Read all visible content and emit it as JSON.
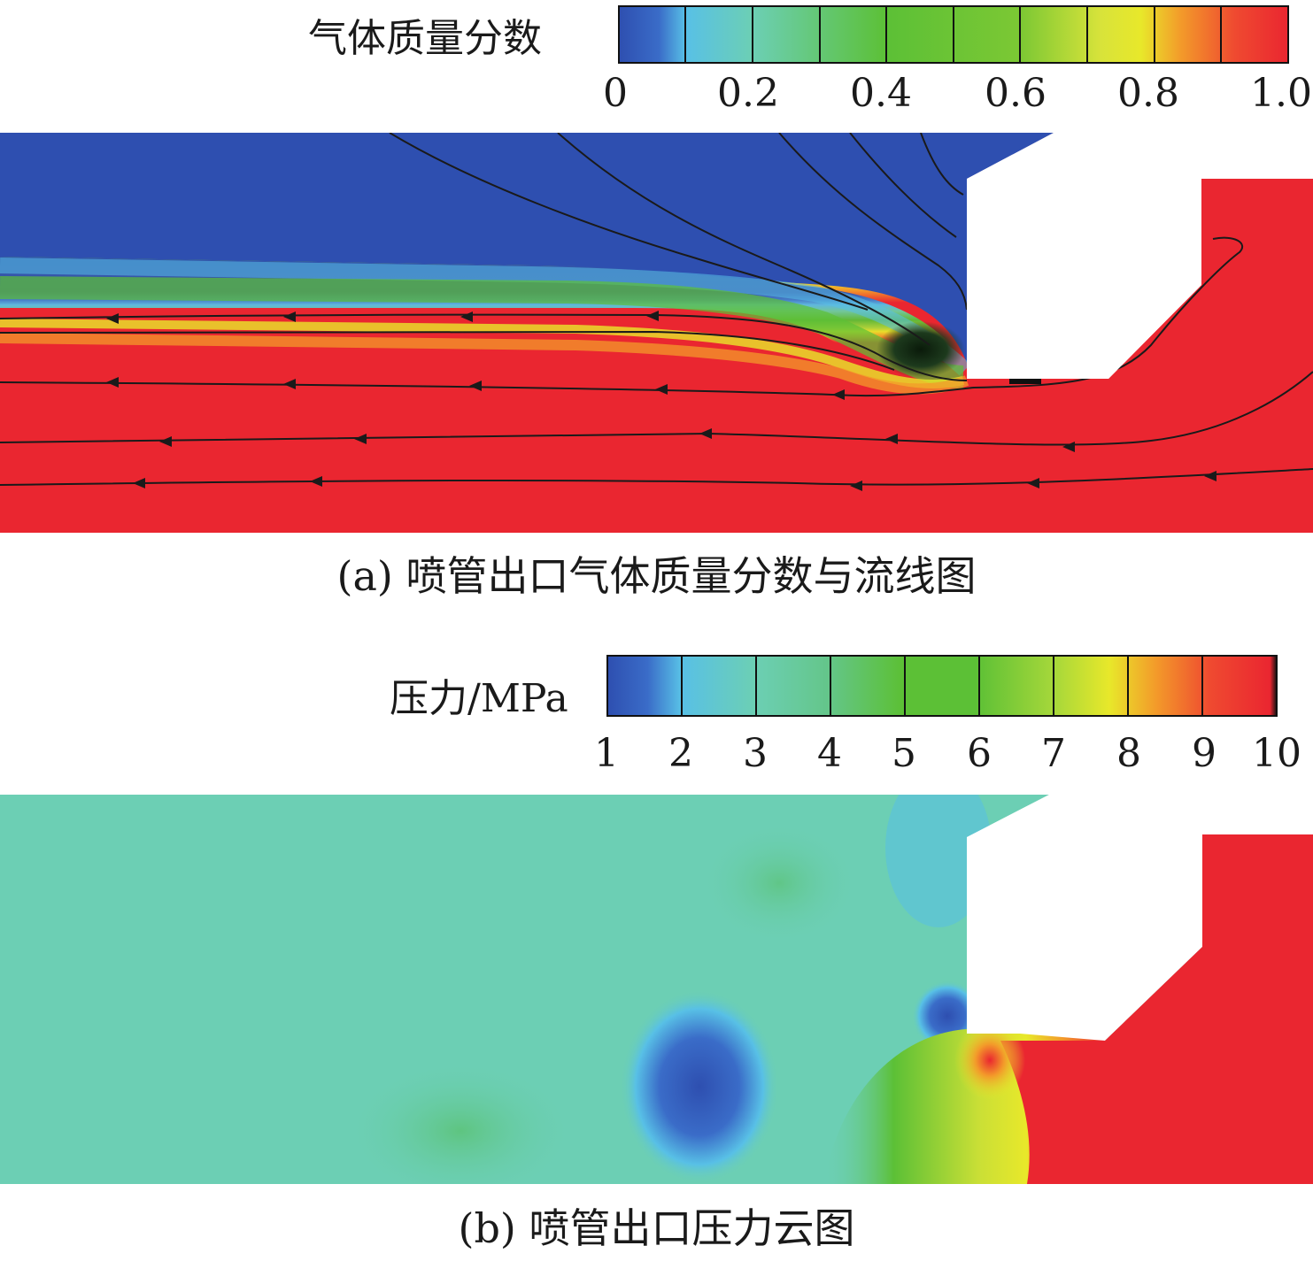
{
  "panel_a": {
    "colorbar_label": "气体质量分数",
    "ticks": [
      "0",
      "0.2",
      "0.4",
      "0.6",
      "0.8",
      "1.0"
    ],
    "caption": "(a) 喷管出口气体质量分数与流线图"
  },
  "panel_b": {
    "colorbar_label": "压力/MPa",
    "ticks": [
      "1",
      "2",
      "3",
      "4",
      "5",
      "6",
      "7",
      "8",
      "9",
      "10"
    ],
    "caption": "(b) 喷管出口压力云图"
  },
  "colors": {
    "blue": "#2e4fb0",
    "light_blue": "#58c0e6",
    "teal": "#6ccfb4",
    "green": "#5cc036",
    "yellow": "#e8e82a",
    "orange": "#f39a2a",
    "red": "#ea2630"
  }
}
